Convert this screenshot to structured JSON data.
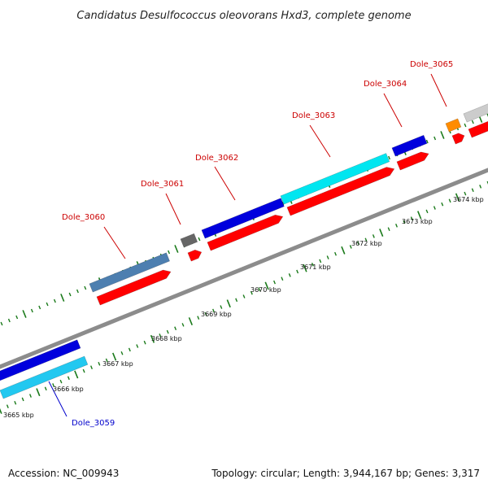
{
  "title": "Candidatus Desulfococcus oleovorans Hxd3, complete genome",
  "footer": {
    "accession": "Accession: NC_009943",
    "topology": "Topology: circular; Length: 3,944,167 bp; Genes: 3,317"
  },
  "scale_labels": [
    "3665 kbp",
    "3666 kbp",
    "3667 kbp",
    "3668 kbp",
    "3669 kbp",
    "3670 kbp",
    "3671 kbp",
    "3672 kbp",
    "3673 kbp",
    "3674 kbp"
  ],
  "gene_labels": [
    {
      "text": "Dole_3059",
      "color": "#0000cc"
    },
    {
      "text": "Dole_3060",
      "color": "#cc0000"
    },
    {
      "text": "Dole_3061",
      "color": "#cc0000"
    },
    {
      "text": "Dole_3062",
      "color": "#cc0000"
    },
    {
      "text": "Dole_3063",
      "color": "#cc0000"
    },
    {
      "text": "Dole_3064",
      "color": "#cc0000"
    },
    {
      "text": "Dole_3065",
      "color": "#cc0000"
    }
  ],
  "colors": {
    "backbone": "#8c8c8c",
    "tick": "#1a7a1a",
    "cds_red": "#ff0000",
    "blue": "#0000dd",
    "cyan": "#00e6f0",
    "light_cyan": "#22c8f0",
    "steel": "#4d7fb0",
    "gray_dark": "#666666",
    "gray_light": "#cccccc",
    "orange": "#ff8c00"
  }
}
